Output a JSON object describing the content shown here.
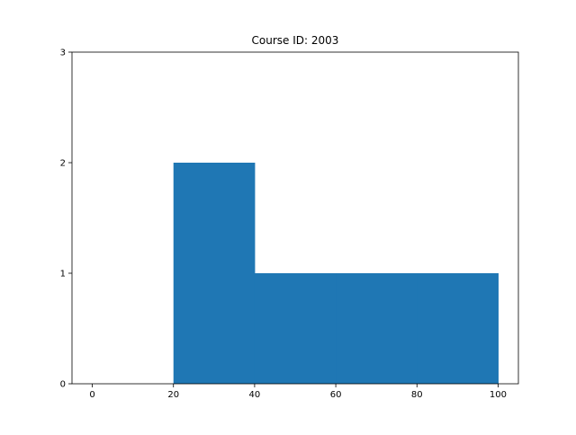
{
  "chart_data": {
    "type": "bar",
    "title": "Course ID: 2003",
    "xlabel": "",
    "ylabel": "",
    "bins": [
      {
        "x0": 20,
        "x1": 40,
        "value": 2
      },
      {
        "x0": 40,
        "x1": 60,
        "value": 1
      },
      {
        "x0": 60,
        "x1": 80,
        "value": 1
      },
      {
        "x0": 80,
        "x1": 100,
        "value": 1
      }
    ],
    "xlim": [
      -5,
      105
    ],
    "ylim": [
      0,
      3
    ],
    "x_ticks": [
      0,
      20,
      40,
      60,
      80,
      100
    ],
    "y_ticks": [
      0,
      1,
      2,
      3
    ],
    "grid": false,
    "bar_color": "#1f77b4"
  }
}
